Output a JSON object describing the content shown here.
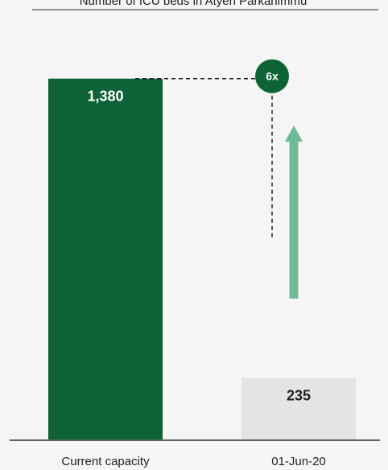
{
  "chart_data": {
    "type": "bar",
    "title": "Number of ICU beds in Atyeri Parkanimmu",
    "categories": [
      "Current capacity",
      "01-Jun-20"
    ],
    "values": [
      1380,
      235
    ],
    "data_labels": [
      "1,380",
      "235"
    ],
    "ylim": [
      0,
      1650
    ],
    "grid": false,
    "legend": "none",
    "annotation": {
      "label": "6x",
      "from_category": "01-Jun-20",
      "to_value": 1380
    }
  },
  "colors": {
    "primary_bar": "#0d6236",
    "secondary_bar": "#e4e4e4",
    "arrow": "#6dbb94",
    "badge": "#0d6236",
    "background": "#f5f5f5",
    "axis": "#333333"
  }
}
